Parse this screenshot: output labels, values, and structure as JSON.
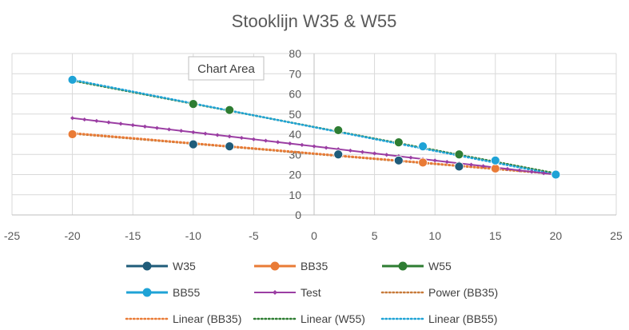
{
  "chart_data": {
    "type": "scatter",
    "title": "Stooklijn W35 & W55",
    "xlabel": "",
    "ylabel": "",
    "xlim": [
      -25,
      25
    ],
    "ylim": [
      0,
      80
    ],
    "x_ticks": [
      -25,
      -20,
      -15,
      -10,
      -5,
      0,
      5,
      10,
      15,
      20,
      25
    ],
    "y_ticks": [
      0,
      10,
      20,
      30,
      40,
      50,
      60,
      70,
      80
    ],
    "grid": true,
    "legend_position": "bottom",
    "tooltip": "Chart Area",
    "series": [
      {
        "name": "W35",
        "color": "#1f5c7a",
        "marker": "circle",
        "points": [
          [
            -10,
            35
          ],
          [
            -7,
            34
          ],
          [
            2,
            30
          ],
          [
            7,
            27
          ],
          [
            12,
            24
          ],
          [
            20,
            20
          ]
        ]
      },
      {
        "name": "BB35",
        "color": "#e97b36",
        "marker": "circle",
        "points": [
          [
            -20,
            40
          ],
          [
            9,
            26
          ],
          [
            15,
            23
          ]
        ]
      },
      {
        "name": "W55",
        "color": "#2e7d32",
        "marker": "circle",
        "points": [
          [
            -10,
            55
          ],
          [
            -7,
            52
          ],
          [
            2,
            42
          ],
          [
            7,
            36
          ],
          [
            12,
            30
          ]
        ]
      },
      {
        "name": "BB55",
        "color": "#1fa3d6",
        "marker": "circle",
        "points": [
          [
            -20,
            67
          ],
          [
            9,
            34
          ],
          [
            15,
            27
          ],
          [
            20,
            20
          ]
        ]
      },
      {
        "name": "Test",
        "color": "#9b3ea3",
        "marker": "diamond",
        "points": [
          [
            -20,
            48
          ],
          [
            -19,
            47.3
          ],
          [
            -18,
            46.6
          ],
          [
            -17,
            45.9
          ],
          [
            -16,
            45.2
          ],
          [
            -15,
            44.5
          ],
          [
            -14,
            43.8
          ],
          [
            -13,
            43.1
          ],
          [
            -12,
            42.4
          ],
          [
            -11,
            41.7
          ],
          [
            -10,
            41
          ],
          [
            -9,
            40.3
          ],
          [
            -8,
            39.6
          ],
          [
            -7,
            38.9
          ],
          [
            -6,
            38.2
          ],
          [
            -5,
            37.5
          ],
          [
            -4,
            36.8
          ],
          [
            -3,
            36.1
          ],
          [
            -2,
            35.4
          ],
          [
            -1,
            34.7
          ],
          [
            0,
            34
          ],
          [
            1,
            33.3
          ],
          [
            2,
            32.6
          ],
          [
            3,
            31.9
          ],
          [
            4,
            31.2
          ],
          [
            5,
            30.5
          ],
          [
            6,
            29.8
          ],
          [
            7,
            29.1
          ],
          [
            8,
            28.4
          ],
          [
            9,
            27.7
          ],
          [
            10,
            27
          ],
          [
            11,
            26.3
          ],
          [
            12,
            25.6
          ],
          [
            13,
            24.9
          ],
          [
            14,
            24.2
          ],
          [
            15,
            23.5
          ],
          [
            16,
            22.8
          ],
          [
            17,
            22.1
          ],
          [
            18,
            21.4
          ],
          [
            19,
            20.7
          ],
          [
            20,
            20
          ]
        ]
      }
    ],
    "trendlines": [
      {
        "name": "Power (BB35)",
        "color": "#c77a3a",
        "points": [
          [
            -20,
            40.3
          ],
          [
            20,
            20.2
          ]
        ]
      },
      {
        "name": "Linear (BB35)",
        "color": "#e97b36",
        "points": [
          [
            -20,
            40.6
          ],
          [
            20,
            20.4
          ]
        ]
      },
      {
        "name": "Linear (W55)",
        "color": "#2e7d32",
        "points": [
          [
            -20,
            66.6
          ],
          [
            20,
            20.6
          ]
        ]
      },
      {
        "name": "Linear (BB55)",
        "color": "#1fa3d6",
        "points": [
          [
            -20,
            67
          ],
          [
            20,
            20
          ]
        ]
      }
    ]
  }
}
